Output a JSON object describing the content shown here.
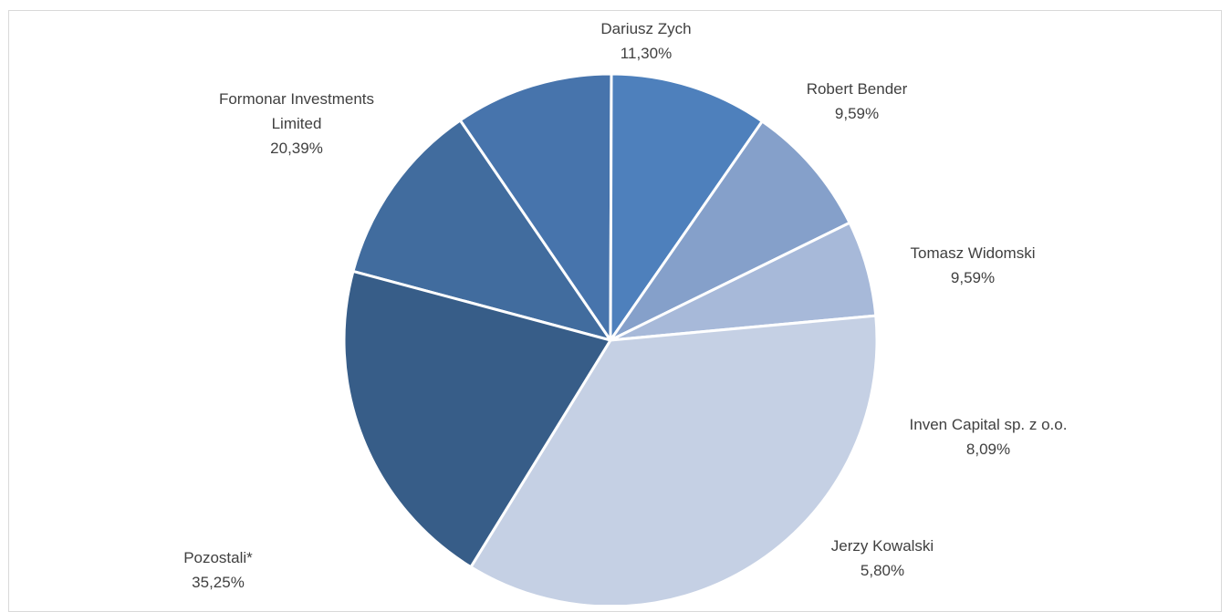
{
  "chart_data": {
    "type": "pie",
    "title": "",
    "slices": [
      {
        "label_lines": [
          "Dariusz Zych"
        ],
        "value": 11.3,
        "value_text": "11,30%",
        "color": "#416c9e"
      },
      {
        "label_lines": [
          "Robert Bender"
        ],
        "value": 9.59,
        "value_text": "9,59%",
        "color": "#4774ac"
      },
      {
        "label_lines": [
          "Tomasz Widomski"
        ],
        "value": 9.59,
        "value_text": "9,59%",
        "color": "#4e80bc"
      },
      {
        "label_lines": [
          "Inven Capital sp. z o.o."
        ],
        "value": 8.09,
        "value_text": "8,09%",
        "color": "#85a0ca"
      },
      {
        "label_lines": [
          "Jerzy Kowalski"
        ],
        "value": 5.8,
        "value_text": "5,80%",
        "color": "#a7b9d9"
      },
      {
        "label_lines": [
          "Pozostali*"
        ],
        "value": 35.25,
        "value_text": "35,25%",
        "color": "#c5d0e4"
      },
      {
        "label_lines": [
          "Formonar Investments",
          "Limited"
        ],
        "value": 20.39,
        "value_text": "20,39%",
        "color": "#375d88"
      }
    ],
    "start_angle_deg": -75,
    "direction": "clockwise",
    "legend": "none",
    "data_labels": "outside"
  }
}
